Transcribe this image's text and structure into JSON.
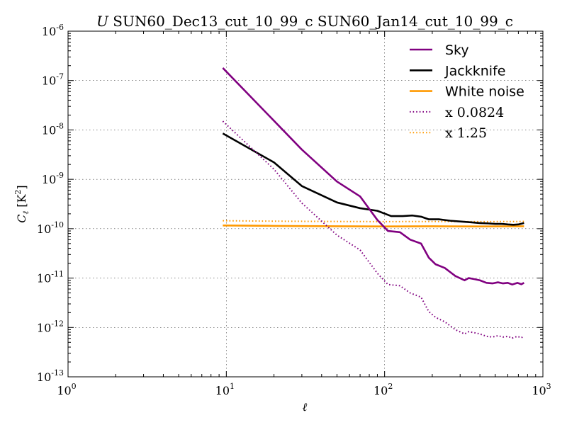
{
  "chart_data": {
    "type": "line",
    "title_symbol": "U",
    "title_text": " SUN60_Dec13_cut_10_99_c SUN60_Jan14_cut_10_99_c",
    "xlabel": "ℓ",
    "ylabel_symbol": "C",
    "ylabel_sub": "ℓ",
    "ylabel_unit": " [K",
    "ylabel_unit_sup": "2",
    "ylabel_unit_close": "]",
    "xscale": "log",
    "yscale": "log",
    "xlim": [
      1,
      1000
    ],
    "ylim": [
      1e-13,
      1e-06
    ],
    "grid": true,
    "legend_position": "upper right",
    "x_ticks": [
      {
        "base": "10",
        "exp": "0",
        "value": 1
      },
      {
        "base": "10",
        "exp": "1",
        "value": 10
      },
      {
        "base": "10",
        "exp": "2",
        "value": 100
      },
      {
        "base": "10",
        "exp": "3",
        "value": 1000
      }
    ],
    "y_ticks": [
      {
        "base": "10",
        "exp": "-13",
        "value": 1e-13
      },
      {
        "base": "10",
        "exp": "-12",
        "value": 1e-12
      },
      {
        "base": "10",
        "exp": "-11",
        "value": 1e-11
      },
      {
        "base": "10",
        "exp": "-10",
        "value": 1e-10
      },
      {
        "base": "10",
        "exp": "-9",
        "value": 1e-09
      },
      {
        "base": "10",
        "exp": "-8",
        "value": 1e-08
      },
      {
        "base": "10",
        "exp": "-7",
        "value": 1e-07
      },
      {
        "base": "10",
        "exp": "-6",
        "value": 1e-06
      }
    ],
    "series": [
      {
        "name": "Sky",
        "color": "#800080",
        "style": "solid",
        "x": [
          9.5,
          30,
          50,
          70,
          90,
          105,
          125,
          145,
          170,
          190,
          210,
          240,
          280,
          320,
          340,
          370,
          400,
          440,
          480,
          520,
          560,
          600,
          640,
          690,
          730,
          760
        ],
        "y": [
          1.8e-07,
          4e-09,
          9e-10,
          4.5e-10,
          1.5e-10,
          9e-11,
          8.5e-11,
          6e-11,
          5e-11,
          2.6e-11,
          1.9e-11,
          1.6e-11,
          1.1e-11,
          9e-12,
          1e-11,
          9.5e-12,
          9e-12,
          8e-12,
          7.8e-12,
          8.2e-12,
          7.8e-12,
          8e-12,
          7.4e-12,
          8e-12,
          7.5e-12,
          8e-12
        ]
      },
      {
        "name": "Jackknife",
        "color": "#000000",
        "style": "solid",
        "x": [
          9.5,
          20,
          30,
          50,
          70,
          90,
          110,
          130,
          150,
          170,
          190,
          220,
          260,
          300,
          350,
          400,
          450,
          500,
          550,
          600,
          650,
          700,
          760
        ],
        "y": [
          8.5e-09,
          2.2e-09,
          7.3e-10,
          3.4e-10,
          2.6e-10,
          2.3e-10,
          1.8e-10,
          1.8e-10,
          1.85e-10,
          1.75e-10,
          1.55e-10,
          1.55e-10,
          1.45e-10,
          1.4e-10,
          1.35e-10,
          1.3e-10,
          1.28e-10,
          1.25e-10,
          1.25e-10,
          1.22e-10,
          1.2e-10,
          1.22e-10,
          1.3e-10
        ]
      },
      {
        "name": "White noise",
        "color": "#FF9900",
        "style": "solid",
        "x": [
          9.5,
          20,
          50,
          100,
          200,
          400,
          760
        ],
        "y": [
          1.16e-10,
          1.14e-10,
          1.12e-10,
          1.11e-10,
          1.12e-10,
          1.11e-10,
          1.12e-10
        ]
      },
      {
        "name": "x 0.0824",
        "color": "#800080",
        "style": "dotted",
        "x": [
          9.5,
          20,
          30,
          50,
          70,
          90,
          105,
          125,
          145,
          170,
          190,
          210,
          240,
          280,
          320,
          340,
          370,
          400,
          440,
          480,
          520,
          560,
          600,
          640,
          690,
          730,
          760
        ],
        "y": [
          1.5e-08,
          1.6e-09,
          3.3e-10,
          7.4e-11,
          3.7e-11,
          1.25e-11,
          7.4e-12,
          7e-12,
          5e-12,
          4.1e-12,
          2.1e-12,
          1.6e-12,
          1.3e-12,
          9e-13,
          7.4e-13,
          8.2e-13,
          7.8e-13,
          7.4e-13,
          6.6e-13,
          6.4e-13,
          6.8e-13,
          6.4e-13,
          6.6e-13,
          6.1e-13,
          6.6e-13,
          6.2e-13,
          6.6e-13
        ]
      },
      {
        "name": "x 1.25",
        "color": "#FF9900",
        "style": "dotted",
        "x": [
          9.5,
          20,
          50,
          100,
          200,
          400,
          760
        ],
        "y": [
          1.45e-10,
          1.42e-10,
          1.4e-10,
          1.39e-10,
          1.4e-10,
          1.39e-10,
          1.4e-10
        ]
      }
    ]
  }
}
